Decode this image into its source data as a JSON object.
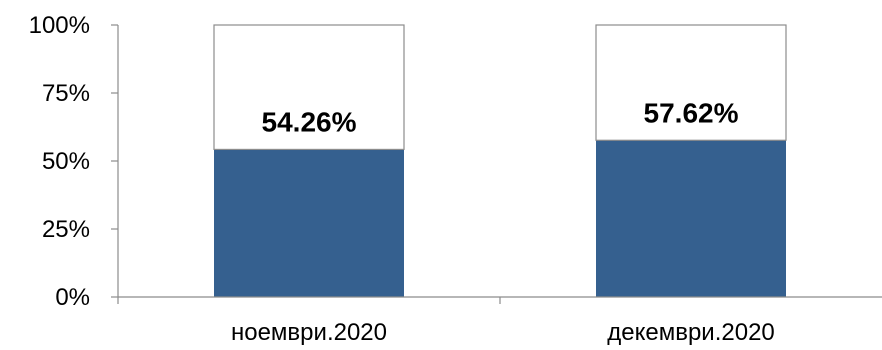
{
  "chart_data": {
    "type": "bar",
    "stacked_percent": true,
    "categories": [
      "ноември.2020",
      "декември.2020"
    ],
    "series": [
      {
        "values": [
          54.26,
          57.62
        ],
        "color": "#35608F"
      },
      {
        "values": [
          45.74,
          42.38
        ],
        "color": "#FFFFFF"
      }
    ],
    "data_labels": [
      "54.26%",
      "57.62%"
    ],
    "ylim": [
      0,
      100
    ],
    "yticks": [
      "0%",
      "25%",
      "50%",
      "75%",
      "100%"
    ],
    "title": "",
    "xlabel": "",
    "ylabel": "",
    "grid": false,
    "legend": "none"
  }
}
